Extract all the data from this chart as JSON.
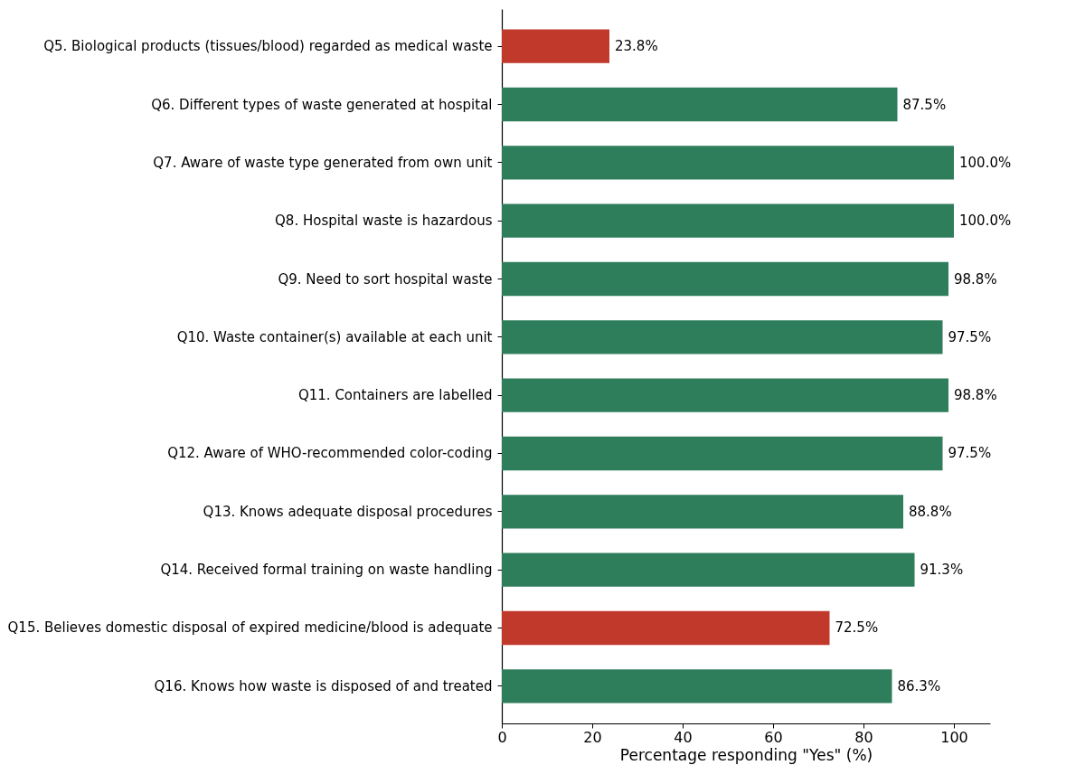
{
  "chart_data": {
    "type": "bar",
    "orientation": "horizontal",
    "xlabel": "Percentage responding \"Yes\" (%)",
    "categories": [
      "Q5. Biological products (tissues/blood) regarded as medical waste",
      "Q6. Different types of waste generated at hospital",
      "Q7. Aware of waste type generated from own unit",
      "Q8. Hospital waste is hazardous",
      "Q9. Need to sort hospital waste",
      "Q10. Waste container(s) available at each unit",
      "Q11. Containers are labelled",
      "Q12. Aware of WHO-recommended color-coding",
      "Q13. Knows adequate disposal procedures",
      "Q14. Received formal training on waste handling",
      "Q15. Believes domestic disposal of expired medicine/blood is adequate",
      "Q16. Knows how waste is disposed of and treated"
    ],
    "values": [
      23.8,
      87.5,
      100.0,
      100.0,
      98.8,
      97.5,
      98.8,
      97.5,
      88.8,
      91.3,
      72.5,
      86.3
    ],
    "value_labels": [
      "23.8%",
      "87.5%",
      "100.0%",
      "100.0%",
      "98.8%",
      "97.5%",
      "98.8%",
      "97.5%",
      "88.8%",
      "91.3%",
      "72.5%",
      "86.3%"
    ],
    "colors": [
      "#c0392b",
      "#2e7d5b",
      "#2e7d5b",
      "#2e7d5b",
      "#2e7d5b",
      "#2e7d5b",
      "#2e7d5b",
      "#2e7d5b",
      "#2e7d5b",
      "#2e7d5b",
      "#c0392b",
      "#2e7d5b"
    ],
    "xlim": [
      0,
      108
    ],
    "xticks": [
      0,
      20,
      40,
      60,
      80,
      100
    ],
    "grid": false
  }
}
